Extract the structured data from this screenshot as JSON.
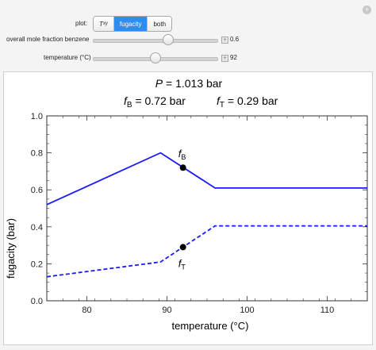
{
  "controls": {
    "plot_label": "plot:",
    "plot_options": [
      {
        "label": "T",
        "sub": "xy",
        "active": false
      },
      {
        "label": "fugacity",
        "sub": "",
        "active": true
      },
      {
        "label": "both",
        "sub": "",
        "active": false
      }
    ],
    "mole_fraction": {
      "label": "overall mole fraction benzene",
      "value": "0.6",
      "fraction": 0.6
    },
    "temperature": {
      "label": "temperature (°C)",
      "value": "92",
      "fraction": 0.5
    }
  },
  "header": {
    "pressure_prefix": "P",
    "pressure_value": " = 1.013 bar",
    "fb_sub": "B",
    "fb_value": " = 0.72 bar",
    "ft_sub": "T",
    "ft_value": " = 0.29 bar"
  },
  "chart_data": {
    "type": "line",
    "xlabel": "temperature (°C)",
    "ylabel": "fugacity (bar)",
    "xlim": [
      75,
      115
    ],
    "ylim": [
      0,
      1.0
    ],
    "xticks": [
      80,
      90,
      100,
      110
    ],
    "yticks": [
      0.0,
      0.2,
      0.4,
      0.6,
      0.8,
      1.0
    ],
    "grid": false,
    "series": [
      {
        "name": "f_B",
        "style": "solid",
        "color": "#1a1aff",
        "x": [
          75,
          89.2,
          96,
          115
        ],
        "y": [
          0.52,
          0.8,
          0.61,
          0.61
        ]
      },
      {
        "name": "f_T",
        "style": "dashed",
        "color": "#1a1aff",
        "x": [
          75,
          89.2,
          96,
          115
        ],
        "y": [
          0.13,
          0.21,
          0.405,
          0.405
        ]
      }
    ],
    "points": [
      {
        "x": 92,
        "y": 0.72,
        "label": "f",
        "sub": "B"
      },
      {
        "x": 92,
        "y": 0.29,
        "label": "f",
        "sub": "T"
      }
    ]
  }
}
